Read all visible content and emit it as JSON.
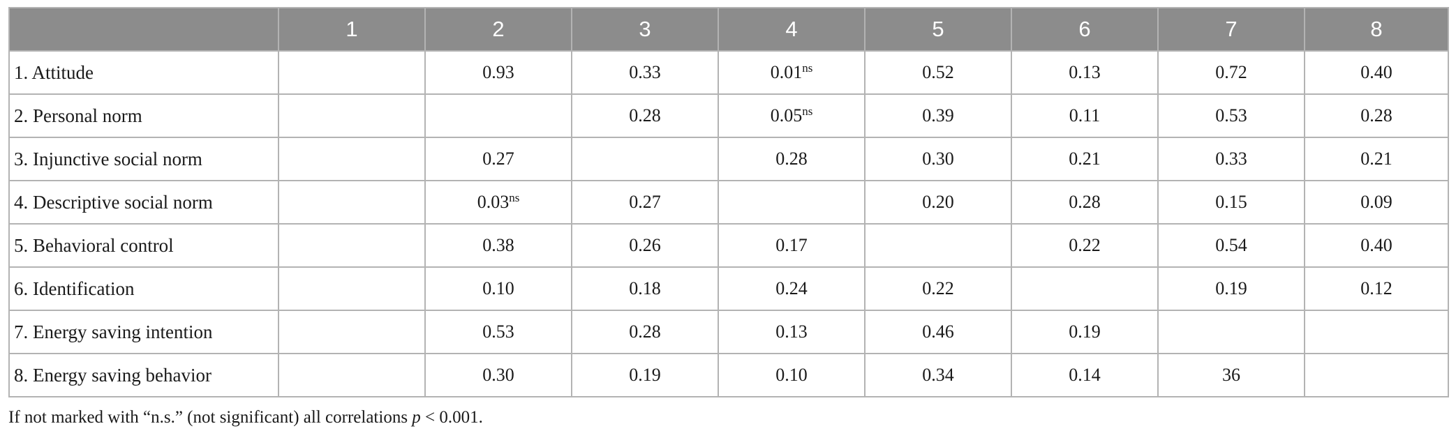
{
  "table": {
    "columns": [
      "",
      "1",
      "2",
      "3",
      "4",
      "5",
      "6",
      "7",
      "8"
    ],
    "rows": [
      {
        "label": "1. Attitude",
        "cells": [
          {
            "v": "",
            "s": ""
          },
          {
            "v": "0.93",
            "s": ""
          },
          {
            "v": "0.33",
            "s": ""
          },
          {
            "v": "0.01",
            "s": "ns"
          },
          {
            "v": "0.52",
            "s": ""
          },
          {
            "v": "0.13",
            "s": ""
          },
          {
            "v": "0.72",
            "s": ""
          },
          {
            "v": "0.40",
            "s": ""
          }
        ]
      },
      {
        "label": "2. Personal norm",
        "cells": [
          {
            "v": "",
            "s": ""
          },
          {
            "v": "",
            "s": ""
          },
          {
            "v": "0.28",
            "s": ""
          },
          {
            "v": "0.05",
            "s": "ns"
          },
          {
            "v": "0.39",
            "s": ""
          },
          {
            "v": "0.11",
            "s": ""
          },
          {
            "v": "0.53",
            "s": ""
          },
          {
            "v": "0.28",
            "s": ""
          }
        ]
      },
      {
        "label": "3. Injunctive social norm",
        "cells": [
          {
            "v": "",
            "s": ""
          },
          {
            "v": "0.27",
            "s": ""
          },
          {
            "v": "",
            "s": ""
          },
          {
            "v": "0.28",
            "s": ""
          },
          {
            "v": "0.30",
            "s": ""
          },
          {
            "v": "0.21",
            "s": ""
          },
          {
            "v": "0.33",
            "s": ""
          },
          {
            "v": "0.21",
            "s": ""
          }
        ]
      },
      {
        "label": "4. Descriptive social norm",
        "cells": [
          {
            "v": "",
            "s": ""
          },
          {
            "v": "0.03",
            "s": "ns"
          },
          {
            "v": "0.27",
            "s": ""
          },
          {
            "v": "",
            "s": ""
          },
          {
            "v": "0.20",
            "s": ""
          },
          {
            "v": "0.28",
            "s": ""
          },
          {
            "v": "0.15",
            "s": ""
          },
          {
            "v": "0.09",
            "s": ""
          }
        ]
      },
      {
        "label": "5. Behavioral control",
        "cells": [
          {
            "v": "",
            "s": ""
          },
          {
            "v": "0.38",
            "s": ""
          },
          {
            "v": "0.26",
            "s": ""
          },
          {
            "v": "0.17",
            "s": ""
          },
          {
            "v": "",
            "s": ""
          },
          {
            "v": "0.22",
            "s": ""
          },
          {
            "v": "0.54",
            "s": ""
          },
          {
            "v": "0.40",
            "s": ""
          }
        ]
      },
      {
        "label": "6. Identification",
        "cells": [
          {
            "v": "",
            "s": ""
          },
          {
            "v": "0.10",
            "s": ""
          },
          {
            "v": "0.18",
            "s": ""
          },
          {
            "v": "0.24",
            "s": ""
          },
          {
            "v": "0.22",
            "s": ""
          },
          {
            "v": "",
            "s": ""
          },
          {
            "v": "0.19",
            "s": ""
          },
          {
            "v": "0.12",
            "s": ""
          }
        ]
      },
      {
        "label": "7. Energy saving intention",
        "cells": [
          {
            "v": "",
            "s": ""
          },
          {
            "v": "0.53",
            "s": ""
          },
          {
            "v": "0.28",
            "s": ""
          },
          {
            "v": "0.13",
            "s": ""
          },
          {
            "v": "0.46",
            "s": ""
          },
          {
            "v": "0.19",
            "s": ""
          },
          {
            "v": "",
            "s": ""
          },
          {
            "v": "",
            "s": ""
          }
        ]
      },
      {
        "label": "8. Energy saving behavior",
        "cells": [
          {
            "v": "",
            "s": ""
          },
          {
            "v": "0.30",
            "s": ""
          },
          {
            "v": "0.19",
            "s": ""
          },
          {
            "v": "0.10",
            "s": ""
          },
          {
            "v": "0.34",
            "s": ""
          },
          {
            "v": "0.14",
            "s": ""
          },
          {
            "v": "36",
            "s": ""
          },
          {
            "v": "",
            "s": ""
          }
        ]
      }
    ]
  },
  "footnote": {
    "pre": "If not marked with “n.s.” (not significant) all correlations ",
    "p": "p",
    "post": " < 0.001."
  },
  "colors": {
    "header_bg": "#8c8c8c",
    "header_text": "#ffffff",
    "border": "#b3b3b3",
    "text": "#1a1a1a"
  }
}
